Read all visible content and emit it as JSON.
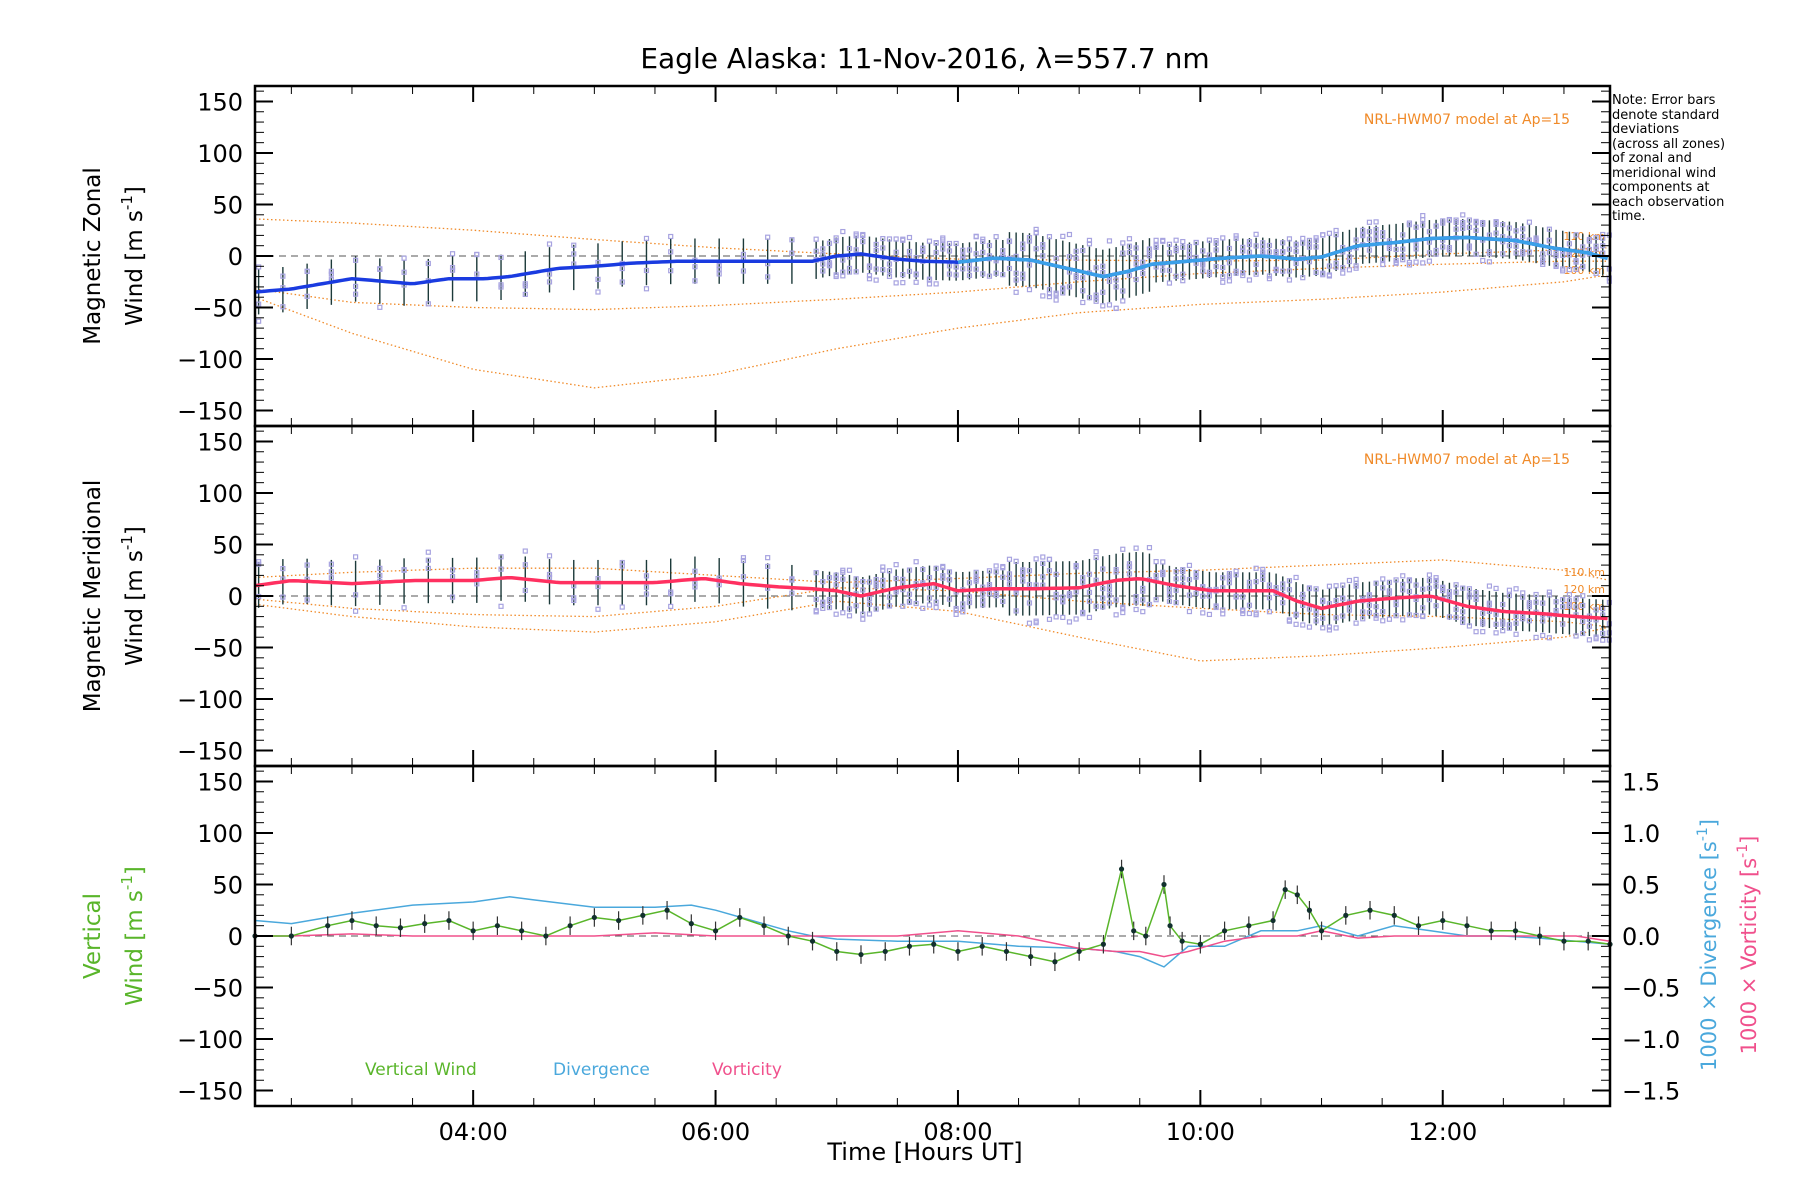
{
  "title": "Eagle Alaska: 11-Nov-2016, λ=557.7 nm",
  "note": "Note: Error bars\ndenote standard\ndeviations\n(across all zones)\nof zonal and\nmeridional wind\ncomponents at\neach observation\ntime.",
  "colors": {
    "zonal": "#1a3be0",
    "zonal_late": "#3aa0e8",
    "meridional": "#ff3060",
    "model": "#f08a28",
    "scatter": "#a7a3e0",
    "vertical": "#59b52a",
    "divergence": "#4aa8dc",
    "vorticity": "#f0508c"
  },
  "chart_data": [
    {
      "type": "line",
      "panel": "zonal",
      "ylabel_line1": "Magnetic Zonal",
      "ylabel_line2_prefix": "Wind ",
      "ylabel_units": "[m s",
      "ylabel_sup": "-1",
      "ylabel_close": "]",
      "ylim": [
        -165,
        165
      ],
      "yticks": [
        -150,
        -100,
        -50,
        0,
        50,
        100,
        150
      ],
      "yticklabels": [
        "−150",
        "−100",
        "−50",
        "0",
        "50",
        "100",
        "150"
      ],
      "model_label": "NRL-HWM07 model at Ap=15",
      "model_heights": [
        "110 km",
        "120 km",
        "100 km"
      ],
      "series": [
        {
          "x": [
            2.2,
            2.5,
            3.0,
            3.2,
            3.5,
            3.8,
            4.1,
            4.3,
            4.7,
            5.0,
            5.3,
            5.7,
            6.0,
            6.4,
            6.8,
            7.0,
            7.2,
            7.5,
            7.7,
            8.0,
            8.3,
            8.6,
            8.9,
            9.2,
            9.4,
            9.6,
            9.9,
            10.2,
            10.5,
            10.8,
            11.0,
            11.3,
            11.6,
            11.9,
            12.2,
            12.6,
            12.9,
            13.2,
            13.38
          ],
          "values": [
            -35,
            -32,
            -22,
            -24,
            -27,
            -22,
            -22,
            -20,
            -12,
            -10,
            -7,
            -5,
            -5,
            -5,
            -5,
            0,
            2,
            -3,
            -5,
            -6,
            -2,
            -4,
            -12,
            -20,
            -15,
            -8,
            -5,
            -2,
            0,
            -3,
            -1,
            10,
            13,
            17,
            18,
            15,
            8,
            3,
            -3
          ]
        }
      ],
      "models": [
        {
          "x": [
            2.2,
            3.0,
            4.0,
            5.0,
            6.0,
            7.0,
            8.0,
            9.0,
            10.0,
            11.0,
            12.0,
            13.0,
            13.38
          ],
          "values": [
            36,
            32,
            25,
            16,
            8,
            2,
            -3,
            -4,
            -5,
            -4,
            2,
            6,
            8
          ]
        },
        {
          "x": [
            2.2,
            3.0,
            4.0,
            5.0,
            6.0,
            7.0,
            8.0,
            9.0,
            10.0,
            11.0,
            12.0,
            13.0,
            13.38
          ],
          "values": [
            -32,
            -45,
            -50,
            -52,
            -48,
            -42,
            -35,
            -25,
            -17,
            -12,
            -8,
            -5,
            -5
          ]
        },
        {
          "x": [
            2.2,
            3.0,
            4.0,
            5.0,
            6.0,
            7.0,
            8.0,
            9.0,
            10.0,
            11.0,
            12.0,
            13.0,
            13.38
          ],
          "values": [
            -40,
            -75,
            -110,
            -128,
            -115,
            -90,
            -70,
            -55,
            -47,
            -42,
            -35,
            -25,
            -18
          ]
        }
      ]
    },
    {
      "type": "line",
      "panel": "meridional",
      "ylabel_line1": "Magnetic Meridional",
      "ylabel_line2_prefix": "Wind ",
      "ylabel_units": "[m s",
      "ylabel_sup": "-1",
      "ylabel_close": "]",
      "ylim": [
        -165,
        165
      ],
      "yticks": [
        -150,
        -100,
        -50,
        0,
        50,
        100,
        150
      ],
      "yticklabels": [
        "−150",
        "−100",
        "−50",
        "0",
        "50",
        "100",
        "150"
      ],
      "model_label": "NRL-HWM07 model at Ap=15",
      "model_heights": [
        "110 km",
        "120 km",
        "100 km"
      ],
      "series": [
        {
          "x": [
            2.2,
            2.5,
            3.0,
            3.5,
            4.0,
            4.3,
            4.7,
            5.0,
            5.5,
            5.9,
            6.2,
            6.5,
            6.8,
            7.0,
            7.2,
            7.5,
            7.8,
            8.0,
            8.3,
            8.6,
            9.0,
            9.3,
            9.5,
            9.8,
            10.1,
            10.4,
            10.6,
            10.8,
            11.0,
            11.3,
            11.6,
            11.9,
            12.2,
            12.5,
            12.8,
            13.1,
            13.38
          ],
          "values": [
            10,
            15,
            12,
            15,
            15,
            18,
            13,
            13,
            13,
            17,
            12,
            9,
            7,
            5,
            0,
            8,
            12,
            5,
            7,
            7,
            8,
            15,
            17,
            10,
            5,
            5,
            5,
            -5,
            -12,
            -5,
            -2,
            0,
            -10,
            -15,
            -17,
            -20,
            -22
          ]
        }
      ],
      "models": [
        {
          "x": [
            2.2,
            3.0,
            4.0,
            5.0,
            6.0,
            7.0,
            8.0,
            9.0,
            10.0,
            11.0,
            12.0,
            13.0,
            13.38
          ],
          "values": [
            18,
            23,
            27,
            27,
            20,
            13,
            17,
            22,
            25,
            30,
            35,
            25,
            15
          ]
        },
        {
          "x": [
            2.2,
            3.0,
            4.0,
            5.0,
            6.0,
            7.0,
            8.0,
            9.0,
            10.0,
            11.0,
            12.0,
            13.0,
            13.38
          ],
          "values": [
            -3,
            -12,
            -18,
            -20,
            -10,
            8,
            5,
            -5,
            -12,
            -18,
            -20,
            -25,
            -30
          ]
        },
        {
          "x": [
            2.2,
            3.0,
            4.0,
            5.0,
            6.0,
            7.0,
            8.0,
            9.0,
            10.0,
            11.0,
            12.0,
            13.0,
            13.38
          ],
          "values": [
            -8,
            -20,
            -30,
            -35,
            -25,
            -5,
            -15,
            -40,
            -63,
            -58,
            -50,
            -40,
            -30
          ]
        }
      ]
    },
    {
      "type": "line",
      "panel": "vertical",
      "ylabel_line1": "Vertical",
      "ylabel_line2_prefix": "Wind ",
      "ylabel_units": "[m s",
      "ylabel_sup": "-1",
      "ylabel_close": "]",
      "ylim": [
        -165,
        165
      ],
      "yticks": [
        -150,
        -100,
        -50,
        0,
        50,
        100,
        150
      ],
      "yticklabels": [
        "−150",
        "−100",
        "−50",
        "0",
        "50",
        "100",
        "150"
      ],
      "y2lim": [
        -1.65,
        1.65
      ],
      "y2ticks": [
        -1.5,
        -1.0,
        -0.5,
        0.0,
        0.5,
        1.0,
        1.5
      ],
      "y2ticklabels": [
        "−1.5",
        "−1.0",
        "−0.5",
        "0.0",
        "0.5",
        "1.0",
        "1.5"
      ],
      "y2label_div": "1000 × Divergence [s",
      "y2label_vor": "1000 × Vorticity [s",
      "y2label_sup": "-1",
      "y2label_close": "]",
      "legend": [
        "Vertical Wind",
        "Divergence",
        "Vorticity"
      ],
      "series": [
        {
          "name": "Vertical Wind",
          "x": [
            2.2,
            2.5,
            2.8,
            3.0,
            3.2,
            3.4,
            3.6,
            3.8,
            4.0,
            4.2,
            4.4,
            4.6,
            4.8,
            5.0,
            5.2,
            5.4,
            5.6,
            5.8,
            6.0,
            6.2,
            6.4,
            6.6,
            6.8,
            7.0,
            7.2,
            7.4,
            7.6,
            7.8,
            8.0,
            8.2,
            8.4,
            8.6,
            8.8,
            9.0,
            9.2,
            9.35,
            9.45,
            9.55,
            9.7,
            9.75,
            9.85,
            10.0,
            10.2,
            10.4,
            10.6,
            10.7,
            10.8,
            10.9,
            11.0,
            11.2,
            11.4,
            11.6,
            11.8,
            12.0,
            12.2,
            12.4,
            12.6,
            12.8,
            13.0,
            13.2,
            13.38
          ],
          "values": [
            0,
            0,
            10,
            15,
            10,
            8,
            12,
            15,
            5,
            10,
            5,
            0,
            10,
            18,
            15,
            20,
            25,
            12,
            5,
            18,
            10,
            0,
            -5,
            -15,
            -18,
            -15,
            -10,
            -8,
            -15,
            -10,
            -15,
            -20,
            -25,
            -15,
            -8,
            65,
            5,
            0,
            50,
            10,
            -5,
            -8,
            5,
            10,
            15,
            45,
            40,
            25,
            5,
            20,
            25,
            20,
            10,
            15,
            10,
            5,
            5,
            0,
            -5,
            -5,
            -8
          ]
        },
        {
          "name": "Divergence",
          "x": [
            2.2,
            2.5,
            3.0,
            3.5,
            4.0,
            4.3,
            4.5,
            5.0,
            5.5,
            5.8,
            6.0,
            6.3,
            6.6,
            6.8,
            7.0,
            7.5,
            8.0,
            8.5,
            9.0,
            9.3,
            9.5,
            9.7,
            9.9,
            10.2,
            10.5,
            10.8,
            11.0,
            11.3,
            11.6,
            11.9,
            12.2,
            12.5,
            12.8,
            13.1,
            13.38
          ],
          "values": [
            0.15,
            0.12,
            0.22,
            0.3,
            0.33,
            0.38,
            0.35,
            0.28,
            0.28,
            0.3,
            0.25,
            0.15,
            0.05,
            0.0,
            -0.03,
            -0.05,
            -0.05,
            -0.1,
            -0.12,
            -0.15,
            -0.2,
            -0.3,
            -0.1,
            -0.1,
            0.05,
            0.05,
            0.1,
            0.0,
            0.1,
            0.05,
            0.0,
            0.0,
            -0.02,
            -0.05,
            -0.08
          ]
        },
        {
          "name": "Vorticity",
          "x": [
            2.2,
            2.5,
            3.0,
            3.5,
            4.0,
            4.5,
            5.0,
            5.5,
            6.0,
            6.3,
            6.6,
            7.0,
            7.5,
            8.0,
            8.5,
            9.0,
            9.3,
            9.5,
            9.7,
            9.9,
            10.2,
            10.5,
            10.8,
            11.0,
            11.3,
            11.6,
            11.9,
            12.2,
            12.5,
            12.8,
            13.1,
            13.38
          ],
          "values": [
            0.0,
            0.0,
            0.02,
            0.0,
            0.0,
            0.0,
            0.0,
            0.03,
            0.0,
            0.0,
            0.0,
            0.0,
            0.0,
            0.05,
            0.0,
            -0.12,
            -0.15,
            -0.15,
            -0.2,
            -0.15,
            -0.05,
            0.0,
            0.0,
            0.05,
            -0.02,
            0.0,
            0.0,
            0.0,
            0.0,
            0.0,
            0.0,
            -0.05
          ]
        }
      ]
    }
  ],
  "xaxis": {
    "xlim": [
      2.2,
      13.38
    ],
    "ticks": [
      4,
      6,
      8,
      10,
      12
    ],
    "ticklabels": [
      "04:00",
      "06:00",
      "08:00",
      "10:00",
      "12:00"
    ],
    "label": "Time [Hours UT]"
  }
}
